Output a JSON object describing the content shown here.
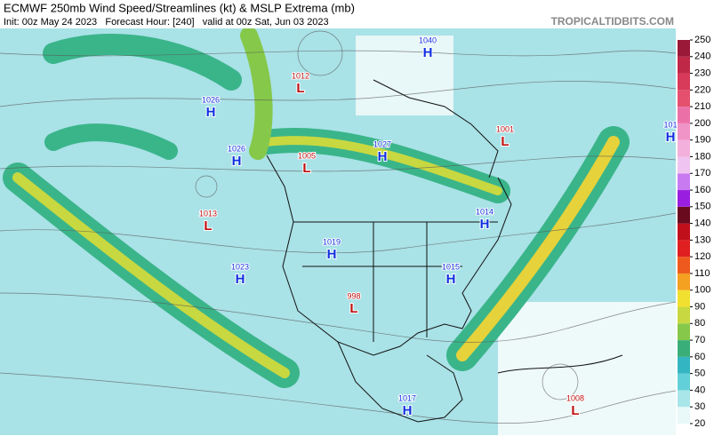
{
  "header": {
    "title": "ECMWF 250mb Wind Speed/Streamlines (kt) & MSLP Extrema (mb)",
    "subtitle": "Init: 00z May 24 2023   Forecast Hour: [240]   valid at 00z Sat, Jun 03 2023",
    "watermark": "TROPICALTIDBITS.COM"
  },
  "colorbar": {
    "ticks": [
      20,
      30,
      40,
      50,
      60,
      70,
      80,
      90,
      100,
      110,
      120,
      130,
      140,
      150,
      160,
      170,
      180,
      190,
      200,
      210,
      220,
      230,
      240,
      250
    ],
    "colors": [
      "#e8f8f8",
      "#a8e6ea",
      "#62d0d8",
      "#34b6c2",
      "#3aae78",
      "#86c84a",
      "#c8d840",
      "#f2e030",
      "#f4a020",
      "#ee5a1e",
      "#e02020",
      "#c0101c",
      "#6a0a1e",
      "#9a1ee0",
      "#c87af0",
      "#f0c4f0",
      "#f4b0dc",
      "#f094c8",
      "#ec70a8",
      "#e4506e",
      "#d83a5a",
      "#c02848",
      "#9a1838"
    ]
  },
  "systems": [
    {
      "label": "H",
      "pressure": 1040
    },
    {
      "label": "L",
      "pressure": 1012
    },
    {
      "label": "H",
      "pressure": 1026
    },
    {
      "label": "H",
      "pressure": 1026
    },
    {
      "label": "L",
      "pressure": 1005
    },
    {
      "label": "H",
      "pressure": 1027
    },
    {
      "label": "L",
      "pressure": 1001
    },
    {
      "label": "H",
      "pressure": 101
    },
    {
      "label": "L",
      "pressure": 1013
    },
    {
      "label": "H",
      "pressure": 1014
    },
    {
      "label": "H",
      "pressure": 1019
    },
    {
      "label": "H",
      "pressure": 1023
    },
    {
      "label": "H",
      "pressure": 1015
    },
    {
      "label": "L",
      "pressure": 998
    },
    {
      "label": "H",
      "pressure": 1017
    },
    {
      "label": "L",
      "pressure": 1008
    }
  ]
}
